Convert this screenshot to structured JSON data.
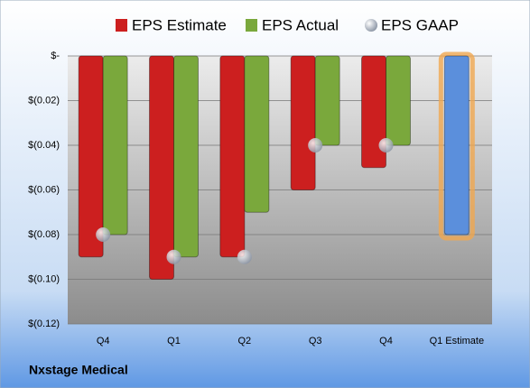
{
  "chart_data": {
    "type": "bar",
    "title": "Nxstage Medical",
    "categories": [
      "Q4",
      "Q1",
      "Q2",
      "Q3",
      "Q4",
      "Q1 Estimate"
    ],
    "series": [
      {
        "name": "EPS Estimate",
        "color": "#cc1f1f",
        "values": [
          -0.09,
          -0.1,
          -0.09,
          -0.06,
          -0.05,
          -0.08
        ],
        "colors": [
          "#cc1f1f",
          "#cc1f1f",
          "#cc1f1f",
          "#cc1f1f",
          "#cc1f1f",
          "#5b8fdc"
        ]
      },
      {
        "name": "EPS Actual",
        "color": "#7aa83c",
        "values": [
          -0.08,
          -0.09,
          -0.07,
          -0.04,
          -0.04,
          null
        ]
      },
      {
        "name": "EPS GAAP",
        "color": "#b4bcc8",
        "marker": "circle",
        "values": [
          -0.08,
          -0.09,
          -0.09,
          -0.04,
          -0.04,
          null
        ]
      }
    ],
    "ylim": [
      -0.12,
      0
    ],
    "yticks": [
      {
        "value": 0,
        "label": "$-"
      },
      {
        "value": -0.02,
        "label": "$(0.02)"
      },
      {
        "value": -0.04,
        "label": "$(0.04)"
      },
      {
        "value": -0.06,
        "label": "$(0.06)"
      },
      {
        "value": -0.08,
        "label": "$(0.08)"
      },
      {
        "value": -0.1,
        "label": "$(0.10)"
      },
      {
        "value": -0.12,
        "label": "$(0.12)"
      }
    ],
    "grid": true,
    "legend": "top"
  }
}
